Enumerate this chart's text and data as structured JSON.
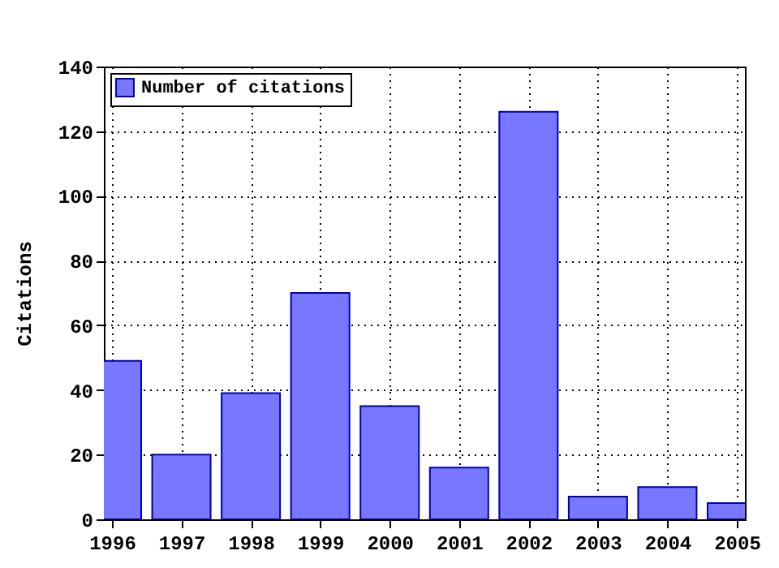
{
  "chart_data": {
    "type": "bar",
    "ylabel": "Citations",
    "x": [
      1996,
      1997,
      1998,
      1999,
      2000,
      2001,
      2002,
      2003,
      2004,
      2005
    ],
    "series": [
      {
        "name": "Number of citations",
        "color": "#7777ff",
        "values": [
          49,
          20,
          39,
          70,
          35,
          16,
          126,
          7,
          10,
          5
        ]
      }
    ],
    "xlim": [
      1996,
      2005
    ],
    "xticks": [
      1996,
      1997,
      1998,
      1999,
      2000,
      2001,
      2002,
      2003,
      2004,
      2005
    ],
    "ylim": [
      0,
      140
    ],
    "yticks": [
      0,
      20,
      40,
      60,
      80,
      100,
      120,
      140
    ],
    "grid": true,
    "legend": "top left"
  }
}
